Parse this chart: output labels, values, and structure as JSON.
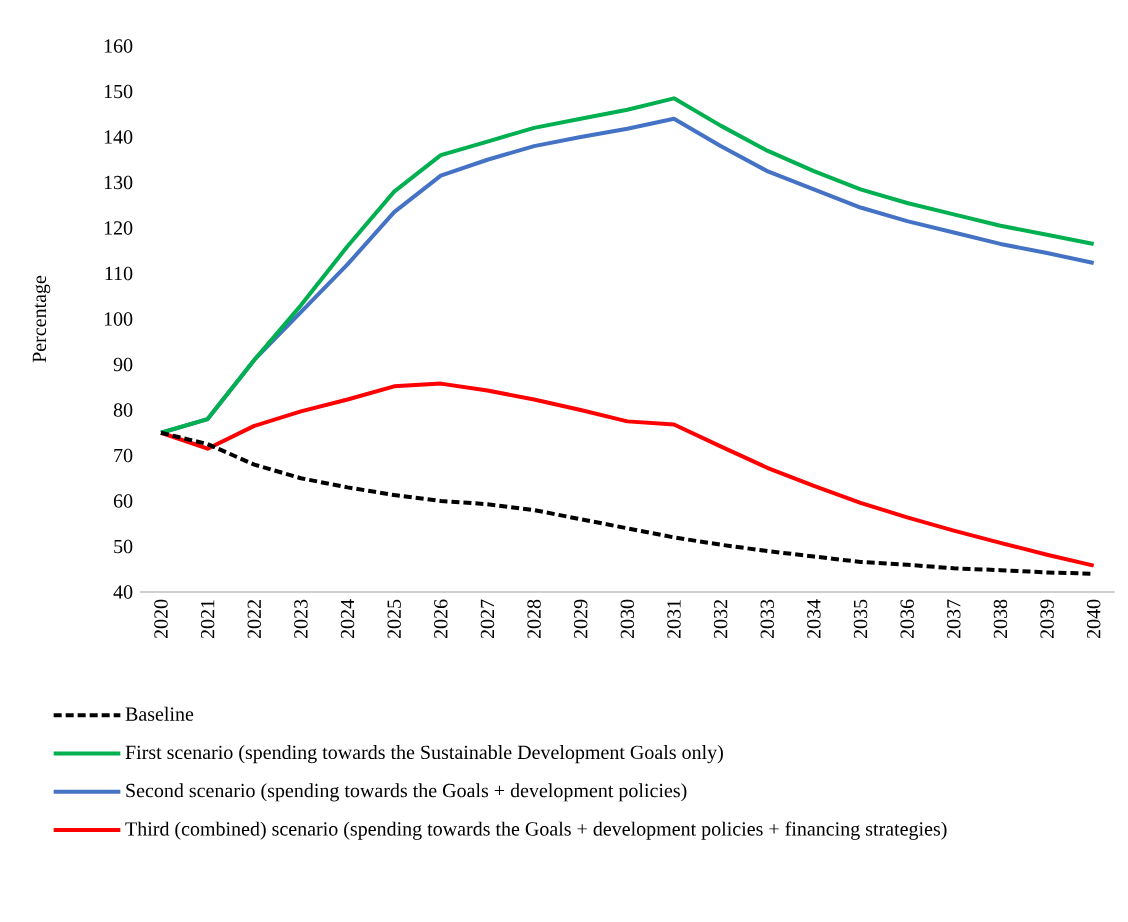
{
  "chart_data": {
    "type": "line",
    "ylabel": "Percentage",
    "categories": [
      "2020",
      "2021",
      "2022",
      "2023",
      "2024",
      "2025",
      "2026",
      "2027",
      "2028",
      "2029",
      "2030",
      "2031",
      "2032",
      "2033",
      "2034",
      "2035",
      "2036",
      "2037",
      "2038",
      "2039",
      "2040"
    ],
    "ylim": [
      40,
      160
    ],
    "yticks": [
      40,
      50,
      60,
      70,
      80,
      90,
      100,
      110,
      120,
      130,
      140,
      150,
      160
    ],
    "legend": "bottom",
    "marker": "none",
    "series": [
      {
        "name": "Baseline",
        "color": "#000000",
        "line_style": "dashed",
        "values": [
          75,
          72.5,
          68,
          65,
          63,
          61.3,
          60,
          59.3,
          58,
          56,
          54,
          52,
          50.4,
          49,
          47.8,
          46.6,
          46,
          45.2,
          44.8,
          44.3,
          44
        ]
      },
      {
        "name": "First scenario (spending towards the Sustainable Development Goals only)",
        "color": "#00b050",
        "line_style": "solid",
        "values": [
          75,
          78,
          91,
          103,
          116,
          128,
          136,
          139,
          142,
          144,
          146,
          148.5,
          142.5,
          137,
          132.5,
          128.5,
          125.5,
          123,
          120.5,
          118.5,
          116.5
        ]
      },
      {
        "name": "Second scenario (spending towards the Goals + development policies)",
        "color": "#4472c4",
        "line_style": "solid",
        "values": [
          75,
          78,
          91,
          101.5,
          112,
          123.5,
          131.5,
          135,
          138,
          140,
          141.8,
          144,
          138,
          132.5,
          128.5,
          124.5,
          121.5,
          119,
          116.5,
          114.5,
          112.3
        ]
      },
      {
        "name": "Third (combined) scenario (spending towards the Goals + development policies + financing strategies)",
        "color": "#ff0000",
        "line_style": "solid",
        "values": [
          75,
          71.5,
          76.5,
          79.7,
          82.3,
          85.2,
          85.8,
          84.3,
          82.3,
          80,
          77.5,
          76.8,
          72,
          67.3,
          63.3,
          59.6,
          56.4,
          53.5,
          50.8,
          48.2,
          45.8
        ]
      }
    ]
  }
}
